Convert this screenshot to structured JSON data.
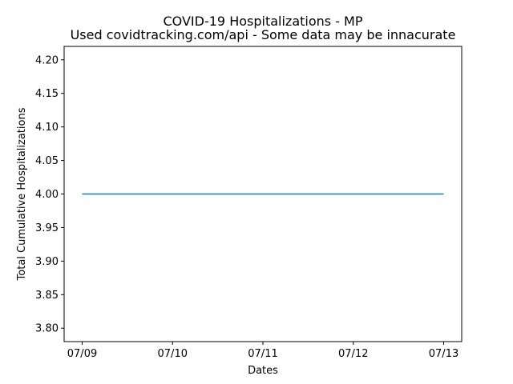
{
  "chart_data": {
    "type": "line",
    "title": "COVID-19 Hospitalizations - MP",
    "subtitle": "Used covidtracking.com/api - Some data may be innacurate",
    "xlabel": "Dates",
    "ylabel": "Total Cumulative Hospitalizations",
    "x": [
      "07/09",
      "07/10",
      "07/11",
      "07/12",
      "07/13"
    ],
    "series": [
      {
        "values": [
          4,
          4,
          4,
          4,
          4
        ],
        "color": "#1f77b4"
      }
    ],
    "ylim": [
      3.78,
      4.22
    ],
    "yticks": [
      3.8,
      3.85,
      3.9,
      3.95,
      4.0,
      4.05,
      4.1,
      4.15,
      4.2
    ],
    "ytick_labels": [
      "3.80",
      "3.85",
      "3.90",
      "3.95",
      "4.00",
      "4.05",
      "4.10",
      "4.15",
      "4.20"
    ],
    "grid": false,
    "legend": "none"
  }
}
